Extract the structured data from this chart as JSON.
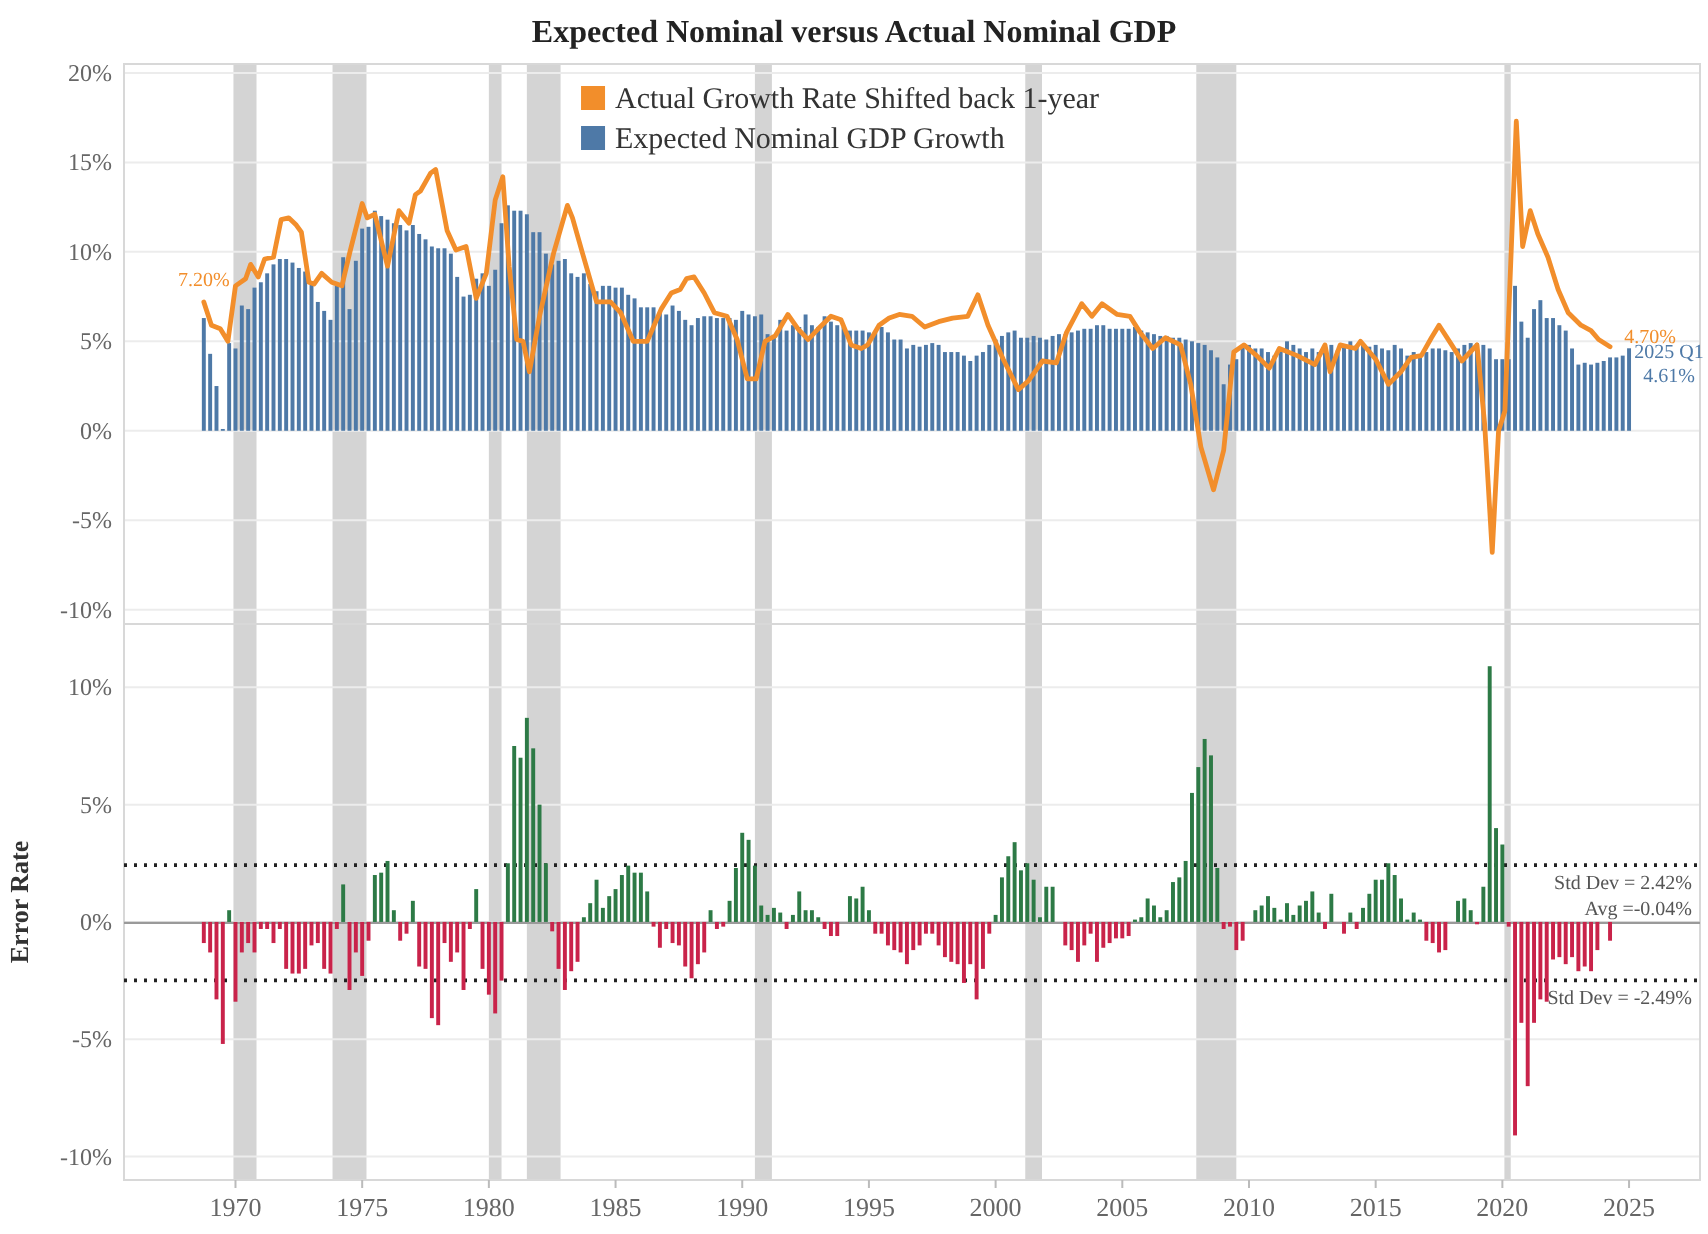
{
  "chart_data": [
    {
      "type": "bar",
      "title": "Expected Nominal versus Actual Nominal GDP",
      "x": [
        1968.75,
        1969,
        1969.25,
        1969.5,
        1969.75,
        1970,
        1970.25,
        1970.5,
        1970.75,
        1971,
        1971.25,
        1971.5,
        1971.75,
        1972,
        1972.25,
        1972.5,
        1972.75,
        1973,
        1973.25,
        1973.5,
        1973.75,
        1974,
        1974.25,
        1974.5,
        1974.75,
        1975,
        1975.25,
        1975.5,
        1975.75,
        1976,
        1976.25,
        1976.5,
        1976.75,
        1977,
        1977.25,
        1977.5,
        1977.75,
        1978,
        1978.25,
        1978.5,
        1978.75,
        1979,
        1979.25,
        1979.5,
        1979.75,
        1980,
        1980.25,
        1980.5,
        1980.75,
        1981,
        1981.25,
        1981.5,
        1981.75,
        1982,
        1982.25,
        1982.5,
        1982.75,
        1983,
        1983.25,
        1983.5,
        1983.75,
        1984,
        1984.25,
        1984.5,
        1984.75,
        1985,
        1985.25,
        1985.5,
        1985.75,
        1986,
        1986.25,
        1986.5,
        1986.75,
        1987,
        1987.25,
        1987.5,
        1987.75,
        1988,
        1988.25,
        1988.5,
        1988.75,
        1989,
        1989.25,
        1989.5,
        1989.75,
        1990,
        1990.25,
        1990.5,
        1990.75,
        1991,
        1991.25,
        1991.5,
        1991.75,
        1992,
        1992.25,
        1992.5,
        1992.75,
        1993,
        1993.25,
        1993.5,
        1993.75,
        1994,
        1994.25,
        1994.5,
        1994.75,
        1995,
        1995.25,
        1995.5,
        1995.75,
        1996,
        1996.25,
        1996.5,
        1996.75,
        1997,
        1997.25,
        1997.5,
        1997.75,
        1998,
        1998.25,
        1998.5,
        1998.75,
        1999,
        1999.25,
        1999.5,
        1999.75,
        2000,
        2000.25,
        2000.5,
        2000.75,
        2001,
        2001.25,
        2001.5,
        2001.75,
        2002,
        2002.25,
        2002.5,
        2002.75,
        2003,
        2003.25,
        2003.5,
        2003.75,
        2004,
        2004.25,
        2004.5,
        2004.75,
        2005,
        2005.25,
        2005.5,
        2005.75,
        2006,
        2006.25,
        2006.5,
        2006.75,
        2007,
        2007.25,
        2007.5,
        2007.75,
        2008,
        2008.25,
        2008.5,
        2008.75,
        2009,
        2009.25,
        2009.5,
        2009.75,
        2010,
        2010.25,
        2010.5,
        2010.75,
        2011,
        2011.25,
        2011.5,
        2011.75,
        2012,
        2012.25,
        2012.5,
        2012.75,
        2013,
        2013.25,
        2013.5,
        2013.75,
        2014,
        2014.25,
        2014.5,
        2014.75,
        2015,
        2015.25,
        2015.5,
        2015.75,
        2016,
        2016.25,
        2016.5,
        2016.75,
        2017,
        2017.25,
        2017.5,
        2017.75,
        2018,
        2018.25,
        2018.5,
        2018.75,
        2019,
        2019.25,
        2019.5,
        2019.75,
        2020,
        2020.25,
        2020.5,
        2020.75,
        2021,
        2021.25,
        2021.5,
        2021.75,
        2022,
        2022.25,
        2022.5,
        2022.75,
        2023,
        2023.25,
        2023.5,
        2023.75,
        2024,
        2024.25,
        2024.5,
        2024.75,
        2025
      ],
      "series": [
        {
          "name": "Expected Nominal GDP Growth",
          "color": "#4e79a7",
          "values": [
            6.3,
            4.3,
            2.5,
            0.1,
            4.9,
            4.6,
            7.0,
            6.8,
            8.0,
            8.3,
            8.8,
            9.3,
            9.6,
            9.6,
            9.4,
            9.1,
            8.9,
            8.3,
            7.2,
            6.7,
            6.2,
            8.1,
            9.7,
            6.8,
            9.5,
            11.3,
            11.4,
            12.3,
            12.0,
            11.8,
            11.6,
            11.5,
            11.2,
            11.5,
            11.0,
            10.7,
            10.3,
            10.2,
            10.2,
            9.9,
            8.6,
            7.5,
            7.6,
            8.5,
            8.8,
            8.1,
            9.0,
            11.6,
            12.6,
            12.3,
            12.3,
            12.1,
            11.1,
            11.1,
            9.9,
            9.3,
            9.5,
            9.6,
            8.8,
            8.6,
            8.8,
            8.2,
            7.8,
            8.1,
            8.1,
            8.0,
            8.0,
            7.6,
            7.4,
            6.9,
            6.9,
            6.9,
            6.6,
            6.5,
            7.0,
            6.7,
            6.2,
            5.9,
            6.3,
            6.4,
            6.4,
            6.3,
            6.3,
            6.3,
            6.2,
            6.7,
            6.5,
            6.4,
            6.5,
            5.4,
            5.3,
            6.2,
            5.6,
            5.9,
            5.8,
            6.5,
            5.9,
            5.8,
            6.4,
            6.1,
            5.9,
            5.8,
            5.6,
            5.6,
            5.6,
            5.5,
            5.5,
            5.8,
            5.5,
            5.1,
            5.1,
            4.6,
            4.8,
            4.7,
            4.8,
            4.9,
            4.8,
            4.4,
            4.4,
            4.4,
            4.2,
            3.9,
            4.2,
            4.4,
            4.8,
            5.1,
            5.3,
            5.5,
            5.6,
            5.2,
            5.2,
            5.3,
            5.2,
            5.1,
            5.3,
            5.4,
            5.4,
            5.5,
            5.6,
            5.7,
            5.7,
            5.9,
            5.9,
            5.7,
            5.7,
            5.7,
            5.7,
            5.8,
            5.6,
            5.5,
            5.4,
            5.3,
            5.3,
            5.2,
            5.2,
            5.1,
            5.0,
            4.9,
            4.8,
            4.5,
            4.1,
            2.6,
            3.7,
            4.0,
            4.8,
            4.8,
            4.6,
            4.6,
            4.4,
            4.2,
            4.6,
            5.0,
            4.8,
            4.6,
            4.4,
            4.6,
            4.4,
            4.6,
            4.8,
            4.5,
            4.8,
            5.0,
            4.8,
            4.9,
            4.7,
            4.8,
            4.6,
            4.5,
            4.8,
            4.6,
            4.2,
            4.4,
            4.2,
            4.4,
            4.6,
            4.6,
            4.5,
            4.4,
            4.6,
            4.8,
            4.9,
            4.9,
            4.8,
            4.6,
            4.0,
            4.0,
            4.0,
            8.1,
            6.1,
            5.2,
            6.8,
            7.3,
            6.3,
            6.3,
            5.9,
            5.6,
            4.6,
            3.7,
            3.8,
            3.7,
            3.8,
            3.9,
            4.1,
            4.1,
            4.2,
            4.61
          ]
        },
        {
          "name": "Actual Growth Rate  Shifted back 1-year",
          "type": "line",
          "color": "#f28e2b",
          "x": [
            1968.75,
            1969.05,
            1969.4,
            1969.7,
            1970.0,
            1970.4,
            1970.6,
            1970.9,
            1971.15,
            1971.5,
            1971.8,
            1972.1,
            1972.4,
            1972.6,
            1972.9,
            1973.1,
            1973.4,
            1973.8,
            1974.2,
            1974.5,
            1975.0,
            1975.2,
            1975.5,
            1976.0,
            1976.45,
            1976.85,
            1977.1,
            1977.3,
            1977.7,
            1977.9,
            1978.35,
            1978.7,
            1979.1,
            1979.5,
            1979.9,
            1980.25,
            1980.55,
            1980.8,
            1981.1,
            1981.35,
            1981.6,
            1982.0,
            1982.55,
            1983.1,
            1983.3,
            1983.7,
            1984.25,
            1984.8,
            1985.2,
            1985.7,
            1986.25,
            1986.8,
            1987.2,
            1987.55,
            1987.8,
            1988.1,
            1988.5,
            1988.9,
            1989.4,
            1989.8,
            1990.2,
            1990.55,
            1990.9,
            1991.3,
            1991.8,
            1992.2,
            1992.6,
            1993.0,
            1993.5,
            1993.9,
            1994.3,
            1994.7,
            1994.95,
            1995.4,
            1995.8,
            1996.2,
            1996.7,
            1997.2,
            1997.75,
            1998.3,
            1998.9,
            1999.3,
            1999.7,
            2000.3,
            2000.9,
            2001.3,
            2001.85,
            2002.4,
            2002.8,
            2003.4,
            2003.8,
            2004.2,
            2004.8,
            2005.3,
            2005.7,
            2006.2,
            2006.7,
            2007.3,
            2007.7,
            2008.1,
            2008.6,
            2009.0,
            2009.4,
            2009.8,
            2010.3,
            2010.8,
            2011.2,
            2011.9,
            2012.6,
            2013.0,
            2013.2,
            2013.6,
            2014.2,
            2014.4,
            2015.0,
            2015.5,
            2016.0,
            2016.4,
            2016.8,
            2017.2,
            2017.5,
            2018.0,
            2018.4,
            2018.8,
            2019.0,
            2019.3,
            2019.6,
            2019.85,
            2020.1,
            2020.55,
            2020.8,
            2021.1,
            2021.4,
            2021.8,
            2022.2,
            2022.6,
            2023.1,
            2023.5,
            2023.8,
            2024.25
          ],
          "values": [
            7.2,
            5.9,
            5.7,
            5.0,
            8.1,
            8.5,
            9.3,
            8.6,
            9.6,
            9.7,
            11.8,
            11.9,
            11.5,
            11.1,
            8.3,
            8.2,
            8.8,
            8.3,
            8.1,
            9.9,
            12.7,
            11.9,
            12.1,
            9.2,
            12.3,
            11.6,
            13.2,
            13.4,
            14.4,
            14.6,
            11.2,
            10.1,
            10.3,
            7.4,
            8.8,
            12.9,
            14.2,
            9.2,
            5.1,
            5.0,
            3.3,
            6.4,
            9.9,
            12.6,
            11.9,
            9.9,
            7.2,
            7.2,
            6.6,
            5.0,
            5.0,
            6.8,
            7.7,
            7.9,
            8.5,
            8.6,
            7.7,
            6.6,
            6.4,
            5.1,
            2.9,
            2.9,
            5.0,
            5.3,
            6.5,
            5.7,
            5.1,
            5.7,
            6.4,
            6.2,
            4.8,
            4.6,
            4.8,
            5.9,
            6.3,
            6.5,
            6.4,
            5.8,
            6.1,
            6.3,
            6.4,
            7.6,
            5.9,
            4.0,
            2.3,
            2.8,
            3.9,
            3.8,
            5.5,
            7.1,
            6.4,
            7.1,
            6.5,
            6.4,
            5.5,
            4.6,
            5.2,
            4.8,
            2.6,
            -0.9,
            -3.3,
            -1.1,
            4.4,
            4.8,
            4.2,
            3.5,
            4.6,
            4.2,
            3.7,
            4.8,
            3.3,
            4.8,
            4.6,
            5.0,
            4.0,
            2.6,
            3.3,
            4.1,
            4.2,
            5.2,
            5.9,
            4.8,
            3.9,
            4.5,
            4.8,
            0.4,
            -6.8,
            0.0,
            1.1,
            17.3,
            10.3,
            12.3,
            11.0,
            9.7,
            7.9,
            6.6,
            5.9,
            5.6,
            5.1,
            4.7
          ]
        }
      ],
      "xlim": [
        1965.6,
        2027.8
      ],
      "ylim": [
        -10.8,
        20.5
      ],
      "yticks": [
        {
          "value": -10,
          "label": "-10%"
        },
        {
          "value": -5,
          "label": "-5%"
        },
        {
          "value": 0,
          "label": "0%"
        },
        {
          "value": 5,
          "label": "5%"
        },
        {
          "value": 10,
          "label": "10%"
        },
        {
          "value": 15,
          "label": "15%"
        },
        {
          "value": 20,
          "label": "20%"
        }
      ],
      "grid": "y",
      "legend": "top",
      "tick_labels": "y",
      "bands": [
        {
          "axis": "x",
          "from": 1969.92,
          "to": 1970.83,
          "color": "#d4d4d4"
        },
        {
          "axis": "x",
          "from": 1973.83,
          "to": 1975.17,
          "color": "#d4d4d4"
        },
        {
          "axis": "x",
          "from": 1980.0,
          "to": 1980.5,
          "color": "#d4d4d4"
        },
        {
          "axis": "x",
          "from": 1981.5,
          "to": 1982.83,
          "color": "#d4d4d4"
        },
        {
          "axis": "x",
          "from": 1990.5,
          "to": 1991.17,
          "color": "#d4d4d4"
        },
        {
          "axis": "x",
          "from": 2001.17,
          "to": 2001.83,
          "color": "#d4d4d4"
        },
        {
          "axis": "x",
          "from": 2007.92,
          "to": 2009.5,
          "color": "#d4d4d4"
        },
        {
          "axis": "x",
          "from": 2020.08,
          "to": 2020.33,
          "color": "#d4d4d4"
        }
      ],
      "annotations": [
        {
          "text": "7.20%",
          "x": 1968.75,
          "y": 7.2
        },
        {
          "text": "4.70%",
          "x": 2024.25,
          "y": 4.7
        },
        {
          "text": "2025 Q1\n4.61%",
          "x": 2025,
          "y": 4.61
        }
      ]
    },
    {
      "type": "bar",
      "ylabel": "Error Rate",
      "x": [
        1968.75,
        1969,
        1969.25,
        1969.5,
        1969.75,
        1970,
        1970.25,
        1970.5,
        1970.75,
        1971,
        1971.25,
        1971.5,
        1971.75,
        1972,
        1972.25,
        1972.5,
        1972.75,
        1973,
        1973.25,
        1973.5,
        1973.75,
        1974,
        1974.25,
        1974.5,
        1974.75,
        1975,
        1975.25,
        1975.5,
        1975.75,
        1976,
        1976.25,
        1976.5,
        1976.75,
        1977,
        1977.25,
        1977.5,
        1977.75,
        1978,
        1978.25,
        1978.5,
        1978.75,
        1979,
        1979.25,
        1979.5,
        1979.75,
        1980,
        1980.25,
        1980.5,
        1980.75,
        1981,
        1981.25,
        1981.5,
        1981.75,
        1982,
        1982.25,
        1982.5,
        1982.75,
        1983,
        1983.25,
        1983.5,
        1983.75,
        1984,
        1984.25,
        1984.5,
        1984.75,
        1985,
        1985.25,
        1985.5,
        1985.75,
        1986,
        1986.25,
        1986.5,
        1986.75,
        1987,
        1987.25,
        1987.5,
        1987.75,
        1988,
        1988.25,
        1988.5,
        1988.75,
        1989,
        1989.25,
        1989.5,
        1989.75,
        1990,
        1990.25,
        1990.5,
        1990.75,
        1991,
        1991.25,
        1991.5,
        1991.75,
        1992,
        1992.25,
        1992.5,
        1992.75,
        1993,
        1993.25,
        1993.5,
        1993.75,
        1994,
        1994.25,
        1994.5,
        1994.75,
        1995,
        1995.25,
        1995.5,
        1995.75,
        1996,
        1996.25,
        1996.5,
        1996.75,
        1997,
        1997.25,
        1997.5,
        1997.75,
        1998,
        1998.25,
        1998.5,
        1998.75,
        1999,
        1999.25,
        1999.5,
        1999.75,
        2000,
        2000.25,
        2000.5,
        2000.75,
        2001,
        2001.25,
        2001.5,
        2001.75,
        2002,
        2002.25,
        2002.5,
        2002.75,
        2003,
        2003.25,
        2003.5,
        2003.75,
        2004,
        2004.25,
        2004.5,
        2004.75,
        2005,
        2005.25,
        2005.5,
        2005.75,
        2006,
        2006.25,
        2006.5,
        2006.75,
        2007,
        2007.25,
        2007.5,
        2007.75,
        2008,
        2008.25,
        2008.5,
        2008.75,
        2009,
        2009.25,
        2009.5,
        2009.75,
        2010,
        2010.25,
        2010.5,
        2010.75,
        2011,
        2011.25,
        2011.5,
        2011.75,
        2012,
        2012.25,
        2012.5,
        2012.75,
        2013,
        2013.25,
        2013.5,
        2013.75,
        2014,
        2014.25,
        2014.5,
        2014.75,
        2015,
        2015.25,
        2015.5,
        2015.75,
        2016,
        2016.25,
        2016.5,
        2016.75,
        2017,
        2017.25,
        2017.5,
        2017.75,
        2018,
        2018.25,
        2018.5,
        2018.75,
        2019,
        2019.25,
        2019.5,
        2019.75,
        2020,
        2020.25,
        2020.5,
        2020.75,
        2021,
        2021.25,
        2021.5,
        2021.75,
        2022,
        2022.25,
        2022.5,
        2022.75,
        2023,
        2023.25,
        2023.5,
        2023.75,
        2024,
        2024.25
      ],
      "series": [
        {
          "color": "#2d7a46",
          "values": [
            null,
            null,
            null,
            null,
            0.5,
            null,
            null,
            null,
            null,
            null,
            null,
            null,
            null,
            null,
            null,
            null,
            null,
            null,
            null,
            null,
            null,
            null,
            1.6,
            null,
            null,
            null,
            null,
            2.0,
            2.1,
            2.6,
            0.5,
            null,
            null,
            0.9,
            null,
            null,
            null,
            null,
            null,
            null,
            null,
            null,
            null,
            1.4,
            null,
            null,
            null,
            null,
            2.5,
            7.5,
            7.0,
            8.7,
            7.4,
            5.0,
            2.5,
            null,
            null,
            null,
            null,
            null,
            0.2,
            0.8,
            1.8,
            0.6,
            1.1,
            1.4,
            2.0,
            2.4,
            2.1,
            2.1,
            1.3,
            null,
            null,
            null,
            null,
            null,
            null,
            null,
            null,
            null,
            0.5,
            null,
            null,
            0.9,
            2.3,
            3.8,
            3.5,
            2.4,
            0.7,
            0.3,
            0.6,
            0.4,
            null,
            0.3,
            1.3,
            0.5,
            0.5,
            0.2,
            null,
            null,
            null,
            0,
            1.1,
            1.0,
            1.5,
            0.5,
            null,
            null,
            null,
            null,
            null,
            null,
            null,
            null,
            null,
            null,
            null,
            null,
            null,
            null,
            null,
            null,
            null,
            null,
            null,
            0.3,
            1.9,
            2.8,
            3.4,
            2.2,
            2.5,
            1.8,
            0.2,
            1.5,
            1.5,
            0,
            null,
            null,
            null,
            null,
            null,
            null,
            null,
            null,
            null,
            null,
            null,
            0.1,
            0.2,
            1.0,
            0.7,
            0.2,
            0.5,
            1.7,
            1.9,
            2.6,
            5.5,
            6.6,
            7.8,
            7.1,
            2.3,
            null,
            null,
            null,
            null,
            0,
            0.5,
            0.7,
            1.1,
            0.6,
            0.1,
            0.8,
            0.3,
            0.7,
            0.9,
            1.3,
            0.4,
            null,
            1.2,
            0,
            null,
            0.4,
            null,
            0.6,
            1.2,
            1.8,
            1.8,
            2.5,
            2.0,
            1.0,
            0.1,
            0.4,
            0.1,
            null,
            null,
            null,
            null,
            0,
            0.9,
            1.0,
            0.5,
            null,
            1.5,
            10.9,
            4.0,
            3.3,
            null,
            null,
            null,
            null,
            null,
            null,
            null,
            null,
            null,
            null,
            null,
            null,
            null,
            null,
            null,
            0,
            null
          ]
        },
        {
          "color": "#c9234a",
          "values": [
            -0.9,
            -1.3,
            -3.3,
            -5.2,
            null,
            -3.4,
            -1.3,
            -0.9,
            -1.3,
            -0.3,
            -0.3,
            -0.9,
            -0.3,
            -2.0,
            -2.2,
            -2.2,
            -2.0,
            -1.0,
            -0.9,
            -2.0,
            -2.2,
            -0.3,
            null,
            -2.9,
            -1.3,
            -2.3,
            -0.8,
            null,
            null,
            null,
            null,
            -0.8,
            -0.5,
            null,
            -1.9,
            -2.0,
            -4.1,
            -4.4,
            -0.9,
            -1.7,
            -1.3,
            -2.9,
            -0.3,
            null,
            -2.0,
            -3.1,
            -3.9,
            -2.5,
            null,
            null,
            null,
            null,
            null,
            null,
            null,
            -0.4,
            -2.0,
            -2.9,
            -2.1,
            -1.7,
            null,
            null,
            null,
            null,
            null,
            null,
            null,
            null,
            null,
            null,
            null,
            -0.2,
            -1.1,
            -0.3,
            -0.9,
            -1.0,
            -1.9,
            -2.4,
            -1.8,
            -1.3,
            null,
            -0.3,
            -0.2,
            null,
            null,
            null,
            null,
            null,
            null,
            null,
            null,
            null,
            -0.3,
            null,
            null,
            null,
            null,
            null,
            -0.3,
            -0.6,
            -0.6,
            null,
            null,
            null,
            null,
            null,
            -0.5,
            -0.5,
            -1.0,
            -1.2,
            -1.3,
            -1.8,
            -1.2,
            -1.0,
            -0.5,
            -0.5,
            -1.0,
            -1.5,
            -1.7,
            -1.8,
            -2.6,
            -1.8,
            -3.3,
            -2.0,
            -0.5,
            null,
            null,
            null,
            null,
            null,
            null,
            null,
            null,
            null,
            null,
            null,
            -1.0,
            -1.2,
            -1.7,
            -1.0,
            -0.5,
            -1.7,
            -1.1,
            -0.9,
            -0.7,
            -0.7,
            -0.6,
            null,
            null,
            null,
            null,
            null,
            null,
            null,
            null,
            null,
            null,
            null,
            null,
            null,
            null,
            -0.3,
            -0.2,
            -1.2,
            -0.8,
            null,
            null,
            null,
            null,
            null,
            null,
            null,
            null,
            null,
            null,
            null,
            null,
            -0.3,
            null,
            null,
            -0.5,
            null,
            -0.3,
            null,
            null,
            null,
            null,
            null,
            null,
            null,
            null,
            null,
            null,
            -0.8,
            -0.9,
            -1.3,
            -1.2,
            null,
            null,
            null,
            null,
            -0.1,
            null,
            null,
            null,
            null,
            -0.2,
            -9.1,
            -4.3,
            -7.0,
            -4.3,
            -3.3,
            -3.4,
            -1.6,
            -1.5,
            -1.8,
            -1.5,
            -2.1,
            -1.9,
            -2.1,
            -1.2,
            null,
            -0.8
          ]
        }
      ],
      "xlim": [
        1965.6,
        2027.8
      ],
      "ylim": [
        -11.0,
        12.7
      ],
      "yticks": [
        {
          "value": -10,
          "label": "-10%"
        },
        {
          "value": -5,
          "label": "-5%"
        },
        {
          "value": 0,
          "label": "0%"
        },
        {
          "value": 5,
          "label": "5%"
        },
        {
          "value": 10,
          "label": "10%"
        }
      ],
      "xticks": [
        1970,
        1975,
        1980,
        1985,
        1990,
        1995,
        2000,
        2005,
        2010,
        2015,
        2020,
        2025
      ],
      "grid": "y",
      "ref_lines": [
        {
          "axis": "y",
          "value": 2.42,
          "label": "Std Dev = 2.42%",
          "color": "#222222",
          "line_style": "dotted"
        },
        {
          "axis": "y",
          "value": -0.04,
          "label": "Avg =-0.04%",
          "color": "#9a9a9a",
          "line_style": "solid"
        },
        {
          "axis": "y",
          "value": -2.49,
          "label": "Std Dev = -2.49%",
          "color": "#222222",
          "line_style": "dotted"
        }
      ],
      "bands": [
        {
          "axis": "x",
          "from": 1969.92,
          "to": 1970.83,
          "color": "#d4d4d4"
        },
        {
          "axis": "x",
          "from": 1973.83,
          "to": 1975.17,
          "color": "#d4d4d4"
        },
        {
          "axis": "x",
          "from": 1980.0,
          "to": 1980.5,
          "color": "#d4d4d4"
        },
        {
          "axis": "x",
          "from": 1981.5,
          "to": 1982.83,
          "color": "#d4d4d4"
        },
        {
          "axis": "x",
          "from": 1990.5,
          "to": 1991.17,
          "color": "#d4d4d4"
        },
        {
          "axis": "x",
          "from": 2001.17,
          "to": 2001.83,
          "color": "#d4d4d4"
        },
        {
          "axis": "x",
          "from": 2007.92,
          "to": 2009.5,
          "color": "#d4d4d4"
        },
        {
          "axis": "x",
          "from": 2020.08,
          "to": 2020.33,
          "color": "#d4d4d4"
        }
      ]
    }
  ]
}
